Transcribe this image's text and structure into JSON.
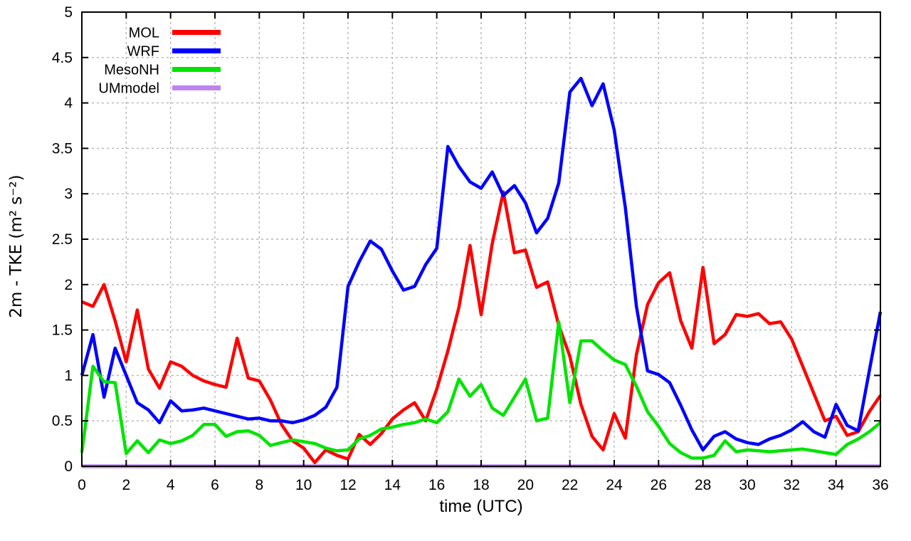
{
  "chart_data": {
    "type": "line",
    "xlabel": "time (UTC)",
    "ylabel": "2m - TKE (m² s⁻²)",
    "xlim": [
      0,
      36
    ],
    "ylim": [
      0,
      5
    ],
    "x_tick_step": 2,
    "y_tick_step": 0.5,
    "grid": true,
    "grid_style": "dashed",
    "legend_position": "top-left",
    "x": {
      "start": 0,
      "step": 0.5
    },
    "series": [
      {
        "name": "MOL",
        "color": "#ff0000",
        "values": [
          1.81,
          1.76,
          2.0,
          1.6,
          1.15,
          1.72,
          1.07,
          0.86,
          1.15,
          1.1,
          1.0,
          0.94,
          0.9,
          0.87,
          1.41,
          0.97,
          0.94,
          0.73,
          0.46,
          0.28,
          0.2,
          0.04,
          0.18,
          0.12,
          0.08,
          0.35,
          0.24,
          0.36,
          0.52,
          0.62,
          0.7,
          0.5,
          0.85,
          1.27,
          1.75,
          2.43,
          1.67,
          2.45,
          3.02,
          2.35,
          2.38,
          1.97,
          2.03,
          1.55,
          1.21,
          0.68,
          0.33,
          0.18,
          0.58,
          0.31,
          1.23,
          1.78,
          2.02,
          2.13,
          1.6,
          1.3,
          2.19,
          1.35,
          1.45,
          1.67,
          1.65,
          1.68,
          1.57,
          1.59,
          1.4,
          1.1,
          0.8,
          0.5,
          0.55,
          0.34,
          0.38,
          0.6,
          0.78
        ]
      },
      {
        "name": "WRF",
        "color": "#0000ff",
        "values": [
          1.0,
          1.45,
          0.76,
          1.3,
          1.0,
          0.7,
          0.62,
          0.48,
          0.72,
          0.61,
          0.62,
          0.64,
          0.61,
          0.58,
          0.55,
          0.52,
          0.53,
          0.5,
          0.5,
          0.48,
          0.51,
          0.56,
          0.65,
          0.87,
          1.98,
          2.25,
          2.48,
          2.39,
          2.15,
          1.94,
          1.98,
          2.22,
          2.4,
          3.52,
          3.3,
          3.13,
          3.06,
          3.24,
          2.98,
          3.09,
          2.9,
          2.57,
          2.73,
          3.12,
          4.12,
          4.27,
          3.97,
          4.21,
          3.7,
          2.85,
          1.76,
          1.05,
          1.01,
          0.92,
          0.67,
          0.4,
          0.18,
          0.33,
          0.38,
          0.3,
          0.26,
          0.24,
          0.3,
          0.34,
          0.4,
          0.49,
          0.38,
          0.32,
          0.68,
          0.45,
          0.39,
          1.05,
          1.7
        ]
      },
      {
        "name": "MesoNH",
        "color": "#00e400",
        "values": [
          0.15,
          1.1,
          0.93,
          0.92,
          0.14,
          0.28,
          0.15,
          0.29,
          0.25,
          0.28,
          0.34,
          0.46,
          0.46,
          0.33,
          0.38,
          0.39,
          0.34,
          0.23,
          0.26,
          0.29,
          0.27,
          0.25,
          0.2,
          0.17,
          0.18,
          0.3,
          0.34,
          0.41,
          0.43,
          0.46,
          0.48,
          0.52,
          0.48,
          0.6,
          0.96,
          0.77,
          0.9,
          0.64,
          0.56,
          0.76,
          0.96,
          0.5,
          0.53,
          1.59,
          0.7,
          1.38,
          1.38,
          1.27,
          1.17,
          1.12,
          0.88,
          0.6,
          0.44,
          0.25,
          0.15,
          0.09,
          0.09,
          0.12,
          0.28,
          0.16,
          0.18,
          0.17,
          0.16,
          0.17,
          0.18,
          0.19,
          0.17,
          0.15,
          0.13,
          0.24,
          0.3,
          0.38,
          0.48
        ]
      },
      {
        "name": "UMmodel",
        "color": "#bc85f2",
        "constant": 0
      }
    ]
  },
  "colors": {
    "grid": "#b4b4b4",
    "axis": "#000000",
    "background": "#ffffff",
    "text": "#000000"
  }
}
